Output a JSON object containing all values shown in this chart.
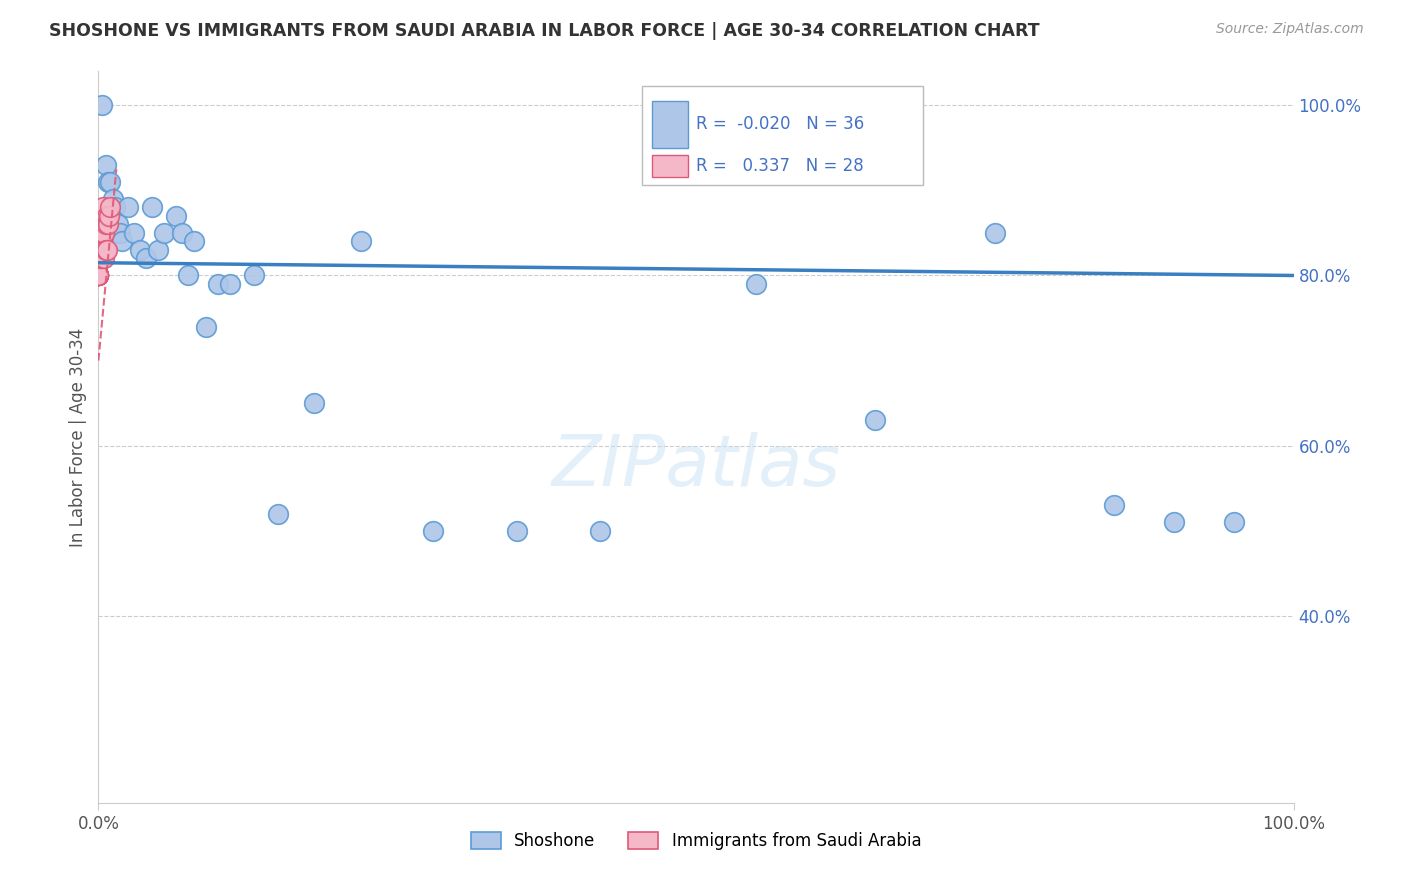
{
  "title": "SHOSHONE VS IMMIGRANTS FROM SAUDI ARABIA IN LABOR FORCE | AGE 30-34 CORRELATION CHART",
  "source": "Source: ZipAtlas.com",
  "ylabel": "In Labor Force | Age 30-34",
  "legend_shoshone": "Shoshone",
  "legend_saudi": "Immigrants from Saudi Arabia",
  "r_shoshone": "-0.020",
  "n_shoshone": "36",
  "r_saudi": "0.337",
  "n_saudi": "28",
  "color_shoshone_fill": "#aec6e8",
  "color_shoshone_edge": "#5b9bd5",
  "color_saudi_fill": "#f4b8c8",
  "color_saudi_edge": "#e05878",
  "color_line_shoshone": "#3a7fc1",
  "color_line_saudi": "#e05878",
  "color_text_blue": "#4472c4",
  "color_grid": "#cccccc",
  "watermark": "ZIPatlas",
  "xlim": [
    0.0,
    1.0
  ],
  "ylim": [
    0.18,
    1.04
  ],
  "ytick_values": [
    0.4,
    0.6,
    0.8,
    1.0
  ],
  "ytick_labels": [
    "40.0%",
    "60.0%",
    "80.0%",
    "100.0%"
  ],
  "xtick_values": [
    0.0,
    1.0
  ],
  "xtick_labels": [
    "0.0%",
    "100.0%"
  ],
  "shoshone_x": [
    0.003,
    0.006,
    0.008,
    0.01,
    0.012,
    0.014,
    0.016,
    0.018,
    0.02,
    0.025,
    0.03,
    0.035,
    0.04,
    0.045,
    0.05,
    0.055,
    0.065,
    0.07,
    0.075,
    0.08,
    0.09,
    0.1,
    0.11,
    0.13,
    0.15,
    0.18,
    0.22,
    0.28,
    0.35,
    0.42,
    0.55,
    0.65,
    0.75,
    0.85,
    0.9,
    0.95
  ],
  "shoshone_y": [
    1.0,
    0.93,
    0.91,
    0.91,
    0.89,
    0.88,
    0.86,
    0.85,
    0.84,
    0.88,
    0.85,
    0.83,
    0.82,
    0.88,
    0.83,
    0.85,
    0.87,
    0.85,
    0.8,
    0.84,
    0.74,
    0.79,
    0.79,
    0.8,
    0.52,
    0.65,
    0.84,
    0.5,
    0.5,
    0.5,
    0.79,
    0.63,
    0.85,
    0.53,
    0.51,
    0.51
  ],
  "saudi_x": [
    0.0,
    0.0,
    0.0,
    0.0,
    0.0,
    0.0,
    0.0,
    0.0,
    0.0,
    0.0,
    0.001,
    0.001,
    0.002,
    0.002,
    0.003,
    0.003,
    0.003,
    0.004,
    0.004,
    0.005,
    0.005,
    0.006,
    0.006,
    0.007,
    0.007,
    0.008,
    0.009,
    0.01
  ],
  "saudi_y": [
    0.8,
    0.8,
    0.8,
    0.8,
    0.8,
    0.8,
    0.8,
    0.8,
    0.8,
    0.8,
    0.82,
    0.83,
    0.84,
    0.85,
    0.82,
    0.84,
    0.85,
    0.85,
    0.88,
    0.82,
    0.85,
    0.83,
    0.86,
    0.83,
    0.87,
    0.86,
    0.87,
    0.88
  ]
}
